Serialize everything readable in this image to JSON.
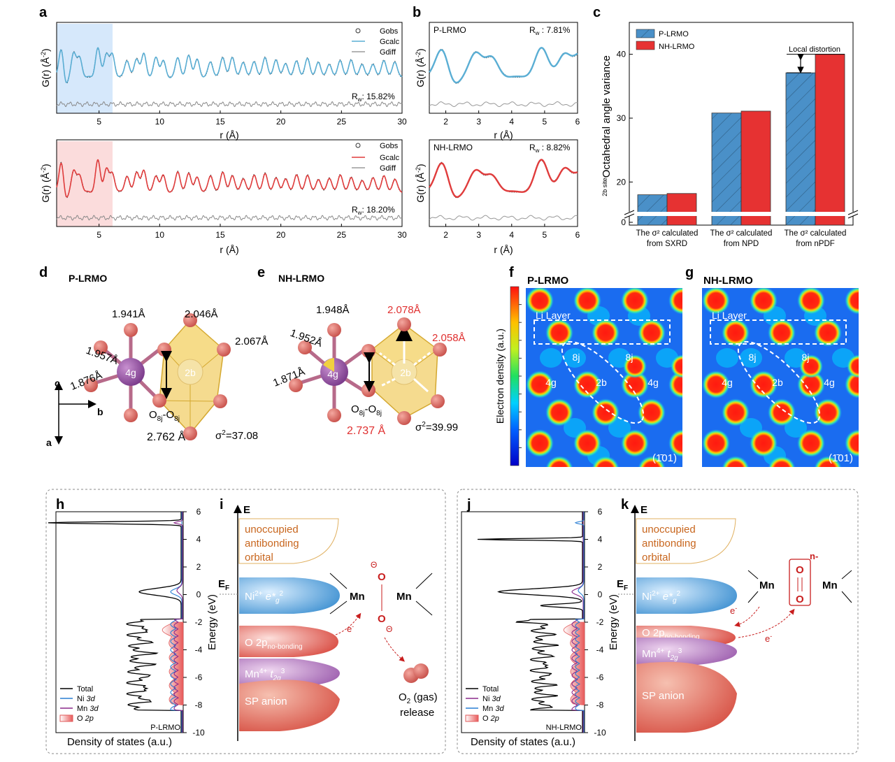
{
  "panel_letters": [
    "a",
    "b",
    "c",
    "d",
    "e",
    "f",
    "g",
    "h",
    "i",
    "j",
    "k"
  ],
  "panel_a": {
    "top": {
      "legend": [
        "Gobs",
        "Gcalc",
        "Gdiff"
      ],
      "rw_label": "R",
      "rw_sub": "w",
      "rw_value": ":  15.82%",
      "ylabel": "G(r) (Å",
      "ylabel_sup": "-2",
      "xlabel": "r (Å)",
      "xticks": [
        "5",
        "10",
        "15",
        "20",
        "25",
        "30"
      ],
      "calc_color": "#5aaed4"
    },
    "bottom": {
      "legend": [
        "Gobs",
        "Gcalc",
        "Gdiff"
      ],
      "rw_label": "R",
      "rw_sub": "w",
      "rw_value": ":  18.20%",
      "ylabel": "G(r) (Å",
      "ylabel_sup": "-2",
      "xlabel": "r (Å)",
      "xticks": [
        "5",
        "10",
        "15",
        "20",
        "25",
        "30"
      ],
      "calc_color": "#e03c3c"
    }
  },
  "panel_b": {
    "top": {
      "name": "P-LRMO",
      "rw_label": "R",
      "rw_sub": "w",
      "rw_value": " : 7.81%",
      "ylabel": "G(r) (Å",
      "ylabel_sup": "-2",
      "xlabel": "r (Å)",
      "xticks": [
        "2",
        "3",
        "4",
        "5",
        "6"
      ]
    },
    "bottom": {
      "name": "NH-LRMO",
      "rw_label": "R",
      "rw_sub": "w",
      "rw_value": " : 8.82%",
      "ylabel": "G(r) (Å",
      "ylabel_sup": "-2",
      "xlabel": "r (Å)",
      "xticks": [
        "2",
        "3",
        "4",
        "5",
        "6"
      ]
    }
  },
  "chart_data": [
    {
      "type": "bar",
      "panel": "c",
      "categories": [
        "The σ² calculated from SXRD",
        "The σ² calculated from NPD",
        "The σ² calculated from nPDF"
      ],
      "category_lines": [
        [
          "The σ² calculated",
          "from SXRD"
        ],
        [
          "The σ² calculated",
          "from NPD"
        ],
        [
          "The σ² calculated",
          "from nPDF"
        ]
      ],
      "series": [
        {
          "name": "P-LRMO",
          "values": [
            18.0,
            30.8,
            37.1
          ],
          "color": "#4a90c8",
          "hatched": true
        },
        {
          "name": "NH-LRMO",
          "values": [
            18.2,
            31.1,
            40.0
          ],
          "color": "#e63232",
          "hatched": false
        }
      ],
      "ylabel": "Octahedral angle variance",
      "ylabel_prefix": "2b site",
      "yticks": [
        "0",
        "20",
        "30",
        "40"
      ],
      "ylim": [
        0,
        45
      ],
      "axis_break": true,
      "legend_position": "top-left",
      "annotation": "Local distortion"
    },
    {
      "type": "line",
      "panel": "h",
      "series": [
        {
          "name": "Total",
          "name_suffix": "",
          "color": "#000000"
        },
        {
          "name": "Ni",
          "name_suffix": "3d",
          "color": "#2a7fd4"
        },
        {
          "name": "Mn",
          "name_suffix": "3d",
          "color": "#8b2a8b"
        },
        {
          "name": "O",
          "name_suffix": "2p",
          "color": "#e05a5a"
        }
      ],
      "ylabel": "Energy (eV)",
      "xlabel": "Density of states (a.u.)",
      "yticks": [
        "6",
        "4",
        "2",
        "0",
        "-2",
        "-4",
        "-6",
        "-8",
        "-10"
      ],
      "ylim": [
        -10,
        6
      ],
      "tag": "P-LRMO"
    },
    {
      "type": "line",
      "panel": "j",
      "series": [
        {
          "name": "Total",
          "name_suffix": "",
          "color": "#000000"
        },
        {
          "name": "Ni",
          "name_suffix": "3d",
          "color": "#8b2a8b"
        },
        {
          "name": "Mn",
          "name_suffix": "3d",
          "color": "#2a7fd4"
        },
        {
          "name": "O",
          "name_suffix": "2p",
          "color": "#e05a5a"
        }
      ],
      "ylabel": "Energy (eV)",
      "xlabel": "Density of states (a.u.)",
      "yticks": [
        "6",
        "4",
        "2",
        "0",
        "-2",
        "-4",
        "-6",
        "-8",
        "-10"
      ],
      "ylim": [
        -10,
        6
      ],
      "tag": "NH-LRMO"
    }
  ],
  "panel_d": {
    "title": "P-LRMO",
    "bonds": [
      "1.941Å",
      "2.046Å",
      "1.957Å",
      "2.067Å",
      "1.876Å"
    ],
    "site_4g": "4g",
    "site_2b": "2b",
    "oo": "O",
    "oo_sub": "8j",
    "oo_mid": "-O",
    "oo_len": "2.762 Å",
    "sigma": "σ",
    "sigma_val": "=37.08",
    "axes": [
      "c",
      "b",
      "a"
    ]
  },
  "panel_e": {
    "title": "NH-LRMO",
    "bonds": [
      "1.948Å",
      "2.078Å",
      "1.952Å",
      "2.058Å",
      "1.871Å"
    ],
    "site_4g": "4g",
    "site_2b": "2b",
    "oo": "O",
    "oo_sub": "8j",
    "oo_mid": "-O",
    "oo_len": "2.737 Å",
    "sigma": "σ",
    "sigma_val": "=39.99",
    "highlight_color": "#e03030"
  },
  "panel_f": {
    "title": "P-LRMO",
    "layer": "Li Layer",
    "sites": [
      "8j",
      "8j",
      "4g",
      "2b",
      "4g"
    ],
    "plane": "(1̄01)",
    "colorbar_label": "Electron density (a.u.)"
  },
  "panel_g": {
    "title": "NH-LRMO",
    "layer": "Li Layer",
    "sites": [
      "8j",
      "8j",
      "4g",
      "2b",
      "4g"
    ],
    "plane": "(1̄01)"
  },
  "panel_i": {
    "axis": "E",
    "fermi": "E",
    "fermi_sub": "F",
    "unocc": [
      "unoccupied",
      "antibonding",
      "orbital"
    ],
    "ni": "Ni",
    "ni_sup": "2+",
    "ni_orb": "e*",
    "ni_sub": "g",
    "ni_pow": "2",
    "o2p": "O 2p",
    "o2p_sub": "no-bonding",
    "mn": "Mn",
    "mn_sup": "4+",
    "mn_orb": "t",
    "mn_sub": "2g",
    "mn_pow": "3",
    "sp": "SP anion",
    "mn_label": "Mn",
    "o_atom": "O",
    "charge": "Θ",
    "electron": "e",
    "electron_sup": "-",
    "gas": [
      "O",
      "2",
      " (gas)",
      "release"
    ]
  },
  "panel_k": {
    "axis": "E",
    "fermi": "E",
    "fermi_sub": "F",
    "unocc": [
      "unoccupied",
      "antibonding",
      "orbital"
    ],
    "ni": "Ni",
    "ni_sup": "2+",
    "ni_orb": "e*",
    "ni_sub": "g",
    "ni_pow": "2",
    "o2p": "O 2p",
    "o2p_sub": "no-bonding",
    "mn": "Mn",
    "mn_sup": "4+",
    "mn_orb": "t",
    "mn_sub": "2g",
    "mn_pow": "3",
    "sp": "SP anion",
    "mn_label": "Mn",
    "o_atom": "O",
    "charge": "n-",
    "electron": "e",
    "electron_sup": "-"
  },
  "colors": {
    "blue": "#4a90c8",
    "red": "#e63232",
    "text_red": "#e03030",
    "orange_text": "#c8661e"
  }
}
